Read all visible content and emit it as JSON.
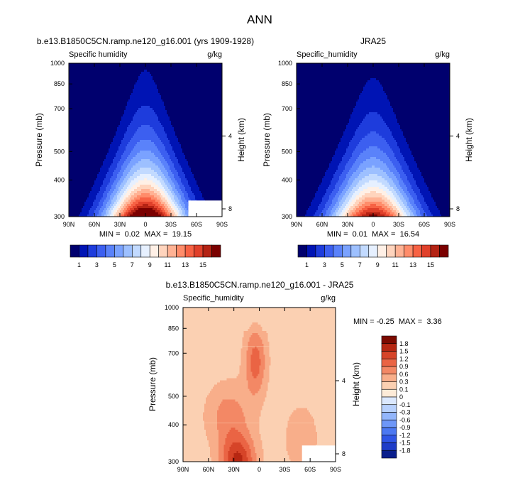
{
  "figure_title": "ANN",
  "palette_abs": [
    "#00006e",
    "#0014b4",
    "#1e3cdc",
    "#3c5ff0",
    "#5a82fa",
    "#7aa2ff",
    "#9dc0ff",
    "#c2daff",
    "#e6f0ff",
    "#fff0e6",
    "#ffd4bd",
    "#ffb294",
    "#ff8c6a",
    "#f76244",
    "#e0402a",
    "#b42314",
    "#7a0000"
  ],
  "palette_diff": [
    "#0a1e8c",
    "#1e3cc8",
    "#2f55e6",
    "#4c78f2",
    "#6e97f8",
    "#93b6fb",
    "#b8d1fd",
    "#dbe8fe",
    "#fdebd8",
    "#fbd0b2",
    "#f8ae8a",
    "#f38865",
    "#ea6444",
    "#d64428",
    "#b62712",
    "#7c0a00"
  ],
  "chart_data": [
    {
      "type": "contour",
      "title": "b.e13.B1850C5CN.ramp.ne120_g16.001 (yrs 1909-1928)",
      "left_label": "Specific humidity",
      "right_label": "g/kg",
      "xlabel": "",
      "ylabel": "Pressure (mb)",
      "ylabel_right": "Height (km)",
      "x_ticks": [
        "90N",
        "60N",
        "30N",
        "0",
        "30S",
        "60S",
        "90S"
      ],
      "y_ticks": [
        "300",
        "400",
        "500",
        "700",
        "850",
        "1000"
      ],
      "y_right_ticks": [
        "8",
        "4"
      ],
      "stats": "MIN =  0.02  MAX =  19.15",
      "min": 0.02,
      "max": 19.15,
      "colorbar_labels": [
        "1",
        "3",
        "5",
        "7",
        "9",
        "11",
        "13",
        "15"
      ],
      "colorbar_levels": [
        0,
        1,
        2,
        3,
        4,
        5,
        6,
        7,
        8,
        9,
        10,
        11,
        12,
        13,
        14,
        15,
        16
      ]
    },
    {
      "type": "contour",
      "title": "JRA25",
      "left_label": "Specific_humidity",
      "right_label": "g/kg",
      "xlabel": "",
      "ylabel": "Pressure (mb)",
      "ylabel_right": "Height (km)",
      "x_ticks": [
        "90N",
        "60N",
        "30N",
        "0",
        "30S",
        "60S",
        "90S"
      ],
      "y_ticks": [
        "300",
        "400",
        "500",
        "700",
        "850",
        "1000"
      ],
      "y_right_ticks": [
        "8",
        "4"
      ],
      "stats": "MIN =  0.01  MAX =  16.54",
      "min": 0.01,
      "max": 16.54,
      "colorbar_labels": [
        "1",
        "3",
        "5",
        "7",
        "9",
        "11",
        "13",
        "15"
      ],
      "colorbar_levels": [
        0,
        1,
        2,
        3,
        4,
        5,
        6,
        7,
        8,
        9,
        10,
        11,
        12,
        13,
        14,
        15,
        16
      ]
    },
    {
      "type": "contour",
      "title": "b.e13.B1850C5CN.ramp.ne120_g16.001 - JRA25",
      "left_label": "Specific_humidity",
      "right_label": "g/kg",
      "xlabel": "",
      "ylabel": "Pressure (mb)",
      "ylabel_right": "Height (km)",
      "x_ticks": [
        "90N",
        "60N",
        "30N",
        "0",
        "30S",
        "60S",
        "90S"
      ],
      "y_ticks": [
        "300",
        "400",
        "500",
        "700",
        "850",
        "1000"
      ],
      "y_right_ticks": [
        "8",
        "4"
      ],
      "stats": "MIN = -0.25  MAX =  3.36",
      "min": -0.25,
      "max": 3.36,
      "colorbar_labels": [
        "1.8",
        "1.5",
        "1.2",
        "0.9",
        "0.6",
        "0.3",
        "0.1",
        "0",
        "-0.1",
        "-0.3",
        "-0.6",
        "-0.9",
        "-1.2",
        "-1.5",
        "-1.8"
      ],
      "colorbar_levels": [
        -1.8,
        -1.5,
        -1.2,
        -0.9,
        -0.6,
        -0.3,
        -0.1,
        0,
        0.1,
        0.3,
        0.6,
        0.9,
        1.2,
        1.5,
        1.8
      ]
    }
  ]
}
